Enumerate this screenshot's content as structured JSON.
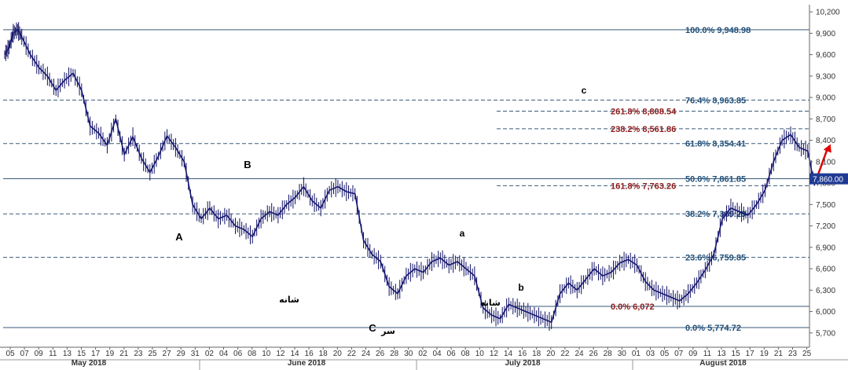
{
  "chart_data": {
    "type": "candlestick",
    "title": "",
    "xlabel": "",
    "ylabel": "",
    "y_range": [
      5500,
      10300
    ],
    "grid": false,
    "y_ticks": [
      "10,200",
      "9,900",
      "9,600",
      "9,300",
      "9,000",
      "8,700",
      "8,400",
      "8,100",
      "7,800",
      "7,500",
      "7,200",
      "6,900",
      "6,600",
      "6,300",
      "6,000",
      "5,700"
    ],
    "y_tick_values": [
      10200,
      9900,
      9600,
      9300,
      9000,
      8700,
      8400,
      8100,
      7800,
      7500,
      7200,
      6900,
      6600,
      6300,
      6000,
      5700
    ],
    "current_price_label": "7,860.00",
    "current_price": 7860,
    "x_day_labels": [
      "05",
      "07",
      "09",
      "11",
      "13",
      "15",
      "17",
      "19",
      "21",
      "23",
      "25",
      "27",
      "29",
      "31",
      "02",
      "04",
      "06",
      "08",
      "10",
      "12",
      "14",
      "16",
      "18",
      "20",
      "22",
      "24",
      "26",
      "28",
      "30",
      "02",
      "04",
      "06",
      "08",
      "10",
      "12",
      "14",
      "16",
      "18",
      "20",
      "22",
      "24",
      "26",
      "28",
      "30",
      "01",
      "03",
      "05",
      "07",
      "09",
      "11",
      "13",
      "15",
      "17",
      "19",
      "21",
      "23",
      "25"
    ],
    "x_months": [
      {
        "label": "May 2018",
        "start_index": 0
      },
      {
        "label": "June 2018",
        "start_index": 14
      },
      {
        "label": "July 2018",
        "start_index": 29
      },
      {
        "label": "August 2018",
        "start_index": 44
      }
    ],
    "fib_levels_retracement": [
      {
        "pct": "100.0%",
        "value": "9,948.98",
        "price": 9948.98,
        "color": "#1f4e79"
      },
      {
        "pct": "76.4%",
        "value": "8,963.85",
        "price": 8963.85,
        "color": "#1f4e79"
      },
      {
        "pct": "61.8%",
        "value": "8,354.41",
        "price": 8354.41,
        "color": "#1f4e79"
      },
      {
        "pct": "50.0%",
        "value": "7,861.85",
        "price": 7861.85,
        "color": "#1f4e79"
      },
      {
        "pct": "38.2%",
        "value": "7,369.29",
        "price": 7369.29,
        "color": "#1f4e79"
      },
      {
        "pct": "23.6%",
        "value": "6,759.85",
        "price": 6759.85,
        "color": "#1f4e79"
      },
      {
        "pct": "0.0%",
        "value": "5,774.72",
        "price": 5774.72,
        "color": "#1f4e79"
      }
    ],
    "fib_levels_extension": [
      {
        "pct": "261.8%",
        "value": "8,808.54",
        "price": 8808.54,
        "color": "#8b1a1a"
      },
      {
        "pct": "238.2%",
        "value": "8,561.86",
        "price": 8561.86,
        "color": "#8b1a1a"
      },
      {
        "pct": "161.8%",
        "value": "7,763.26",
        "price": 7763.26,
        "color": "#8b1a1a"
      },
      {
        "pct": "0.0%",
        "value": "6,072",
        "price": 6072,
        "color": "#8b1a1a"
      }
    ],
    "wave_labels": [
      {
        "text": "A",
        "day_index": 29.3,
        "price": 6840
      },
      {
        "text": "B",
        "day_index": 38.5,
        "price": 7880
      },
      {
        "text": "C",
        "day_index": 58.7,
        "price": 5610
      },
      {
        "text": "a",
        "day_index": 73.3,
        "price": 6850
      },
      {
        "text": "b",
        "day_index": 82.2,
        "price": 6110
      },
      {
        "text": "c",
        "day_index": 92.5,
        "price": 9020
      }
    ],
    "annotations": [
      {
        "text": "شانه",
        "day_index": 46,
        "price": 5980
      },
      {
        "text": "سر",
        "day_index": 61.5,
        "price": 5600
      },
      {
        "text": "شانه",
        "day_index": 77.9,
        "price": 5960
      }
    ],
    "close_path": [
      [
        0,
        9600
      ],
      [
        0.5,
        9700
      ],
      [
        1,
        9900
      ],
      [
        1.5,
        9950
      ],
      [
        2,
        9850
      ],
      [
        3,
        9600
      ],
      [
        4,
        9420
      ],
      [
        5,
        9300
      ],
      [
        6,
        9100
      ],
      [
        7,
        9240
      ],
      [
        8,
        9340
      ],
      [
        9,
        9100
      ],
      [
        10,
        8600
      ],
      [
        11,
        8500
      ],
      [
        12,
        8330
      ],
      [
        13,
        8700
      ],
      [
        14,
        8200
      ],
      [
        15,
        8450
      ],
      [
        16,
        8150
      ],
      [
        17,
        7950
      ],
      [
        18,
        8180
      ],
      [
        19,
        8460
      ],
      [
        20,
        8300
      ],
      [
        21,
        8100
      ],
      [
        22,
        7500
      ],
      [
        23,
        7300
      ],
      [
        24,
        7450
      ],
      [
        25,
        7300
      ],
      [
        26,
        7350
      ],
      [
        27,
        7200
      ],
      [
        28,
        7150
      ],
      [
        29,
        7050
      ],
      [
        30,
        7300
      ],
      [
        31,
        7400
      ],
      [
        32,
        7350
      ],
      [
        33,
        7500
      ],
      [
        34,
        7600
      ],
      [
        35,
        7750
      ],
      [
        36,
        7550
      ],
      [
        37,
        7450
      ],
      [
        38,
        7700
      ],
      [
        39,
        7750
      ],
      [
        40,
        7680
      ],
      [
        41,
        7650
      ],
      [
        42,
        7000
      ],
      [
        43,
        6800
      ],
      [
        44,
        6700
      ],
      [
        45,
        6350
      ],
      [
        46,
        6250
      ],
      [
        47,
        6500
      ],
      [
        48,
        6600
      ],
      [
        49,
        6550
      ],
      [
        50,
        6700
      ],
      [
        51,
        6750
      ],
      [
        52,
        6650
      ],
      [
        53,
        6700
      ],
      [
        54,
        6600
      ],
      [
        55,
        6500
      ],
      [
        56,
        6050
      ],
      [
        57,
        5950
      ],
      [
        58,
        5900
      ],
      [
        59,
        6100
      ],
      [
        60,
        6050
      ],
      [
        61,
        6000
      ],
      [
        62,
        5950
      ],
      [
        63,
        5900
      ],
      [
        64,
        5850
      ],
      [
        65,
        6250
      ],
      [
        66,
        6400
      ],
      [
        67,
        6300
      ],
      [
        68,
        6450
      ],
      [
        69,
        6600
      ],
      [
        70,
        6500
      ],
      [
        71,
        6550
      ],
      [
        72,
        6680
      ],
      [
        73,
        6730
      ],
      [
        74,
        6650
      ],
      [
        75,
        6420
      ],
      [
        76,
        6300
      ],
      [
        77,
        6250
      ],
      [
        78,
        6200
      ],
      [
        79,
        6150
      ],
      [
        80,
        6250
      ],
      [
        81,
        6400
      ],
      [
        82,
        6580
      ],
      [
        83,
        6800
      ],
      [
        84,
        7300
      ],
      [
        85,
        7450
      ],
      [
        86,
        7400
      ],
      [
        87,
        7350
      ],
      [
        88,
        7500
      ],
      [
        89,
        7700
      ],
      [
        90,
        8100
      ],
      [
        91,
        8400
      ],
      [
        92,
        8480
      ],
      [
        93,
        8300
      ],
      [
        94,
        8250
      ],
      [
        94.8,
        7763
      ]
    ],
    "projection_arrow": {
      "from": [
        95,
        7850
      ],
      "to": [
        96.3,
        8280
      ],
      "color": "#e00000"
    }
  }
}
